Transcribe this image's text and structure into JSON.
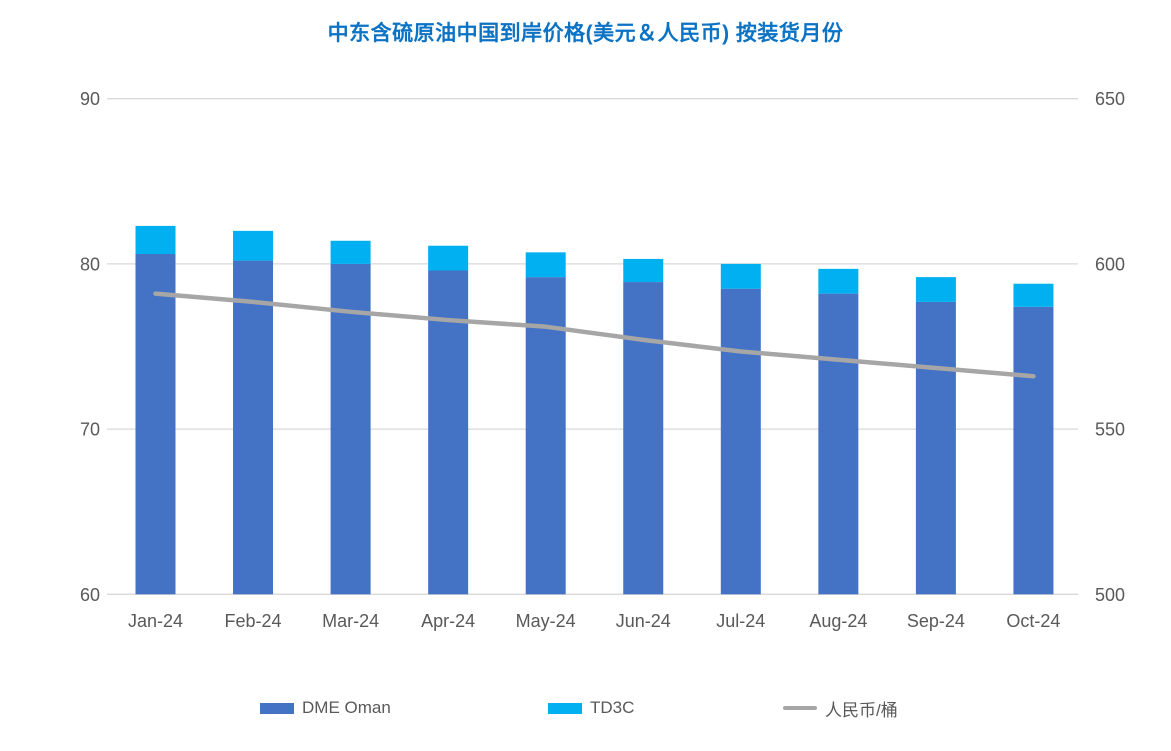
{
  "title": "中东含硫原油中国到岸价格(美元＆人民币) 按装货月份",
  "colors": {
    "title": "#0B72C4",
    "bar_dme": "#4472C4",
    "bar_td3c": "#00B0F0",
    "line_rmb": "#A6A6A6",
    "gridline": "#D9D9D9",
    "axis_text": "#595959"
  },
  "legend": [
    {
      "label": "DME Oman",
      "swatch": "bar",
      "color": "#4472C4"
    },
    {
      "label": "TD3C",
      "swatch": "bar",
      "color": "#00B0F0"
    },
    {
      "label": "人民币/桶",
      "swatch": "line",
      "color": "#A6A6A6"
    }
  ],
  "chart_data": {
    "type": "bar",
    "subtype": "stacked-bar-with-line-combo",
    "title": "中东含硫原油中国到岸价格(美元＆人民币) 按装货月份",
    "categories": [
      "Jan-24",
      "Feb-24",
      "Mar-24",
      "Apr-24",
      "May-24",
      "Jun-24",
      "Jul-24",
      "Aug-24",
      "Sep-24",
      "Oct-24"
    ],
    "series": [
      {
        "name": "DME Oman",
        "type": "bar",
        "stacked": true,
        "axis": "left",
        "color": "#4472C4",
        "values": [
          80.6,
          80.2,
          80.0,
          79.6,
          79.2,
          78.9,
          78.5,
          78.2,
          77.7,
          77.4
        ]
      },
      {
        "name": "TD3C",
        "type": "bar",
        "stacked": true,
        "axis": "left",
        "color": "#00B0F0",
        "values": [
          1.7,
          1.8,
          1.4,
          1.5,
          1.5,
          1.4,
          1.5,
          1.5,
          1.5,
          1.4
        ]
      },
      {
        "name": "人民币/桶",
        "type": "line",
        "axis": "right",
        "color": "#A6A6A6",
        "values": [
          591,
          588.5,
          585.5,
          583,
          581,
          577,
          573.5,
          571,
          568.5,
          566
        ]
      }
    ],
    "stack_totals": [
      82.3,
      82.0,
      81.4,
      81.1,
      80.7,
      80.3,
      80.0,
      79.7,
      79.2,
      78.8
    ],
    "left_axis": {
      "min": 60,
      "max": 90,
      "ticks": [
        "60",
        "70",
        "80",
        "90"
      ]
    },
    "right_axis": {
      "min": 500,
      "max": 650,
      "ticks": [
        "500",
        "550",
        "600",
        "650"
      ]
    },
    "grid": true,
    "legend_position": "bottom",
    "xlabel": "",
    "ylabel_left": "",
    "ylabel_right": ""
  }
}
